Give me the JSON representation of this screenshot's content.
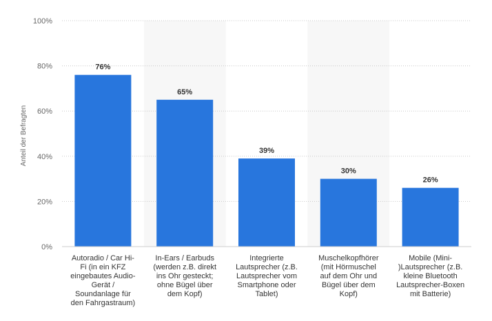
{
  "chart_data": {
    "type": "bar",
    "categories": [
      [
        "Autoradio / Car Hi-",
        "Fi (in ein KFZ",
        "eingebautes Audio-",
        "Gerät /",
        "Soundanlage für",
        "den Fahrgastraum)"
      ],
      [
        "In-Ears / Earbuds",
        "(werden z.B. direkt",
        "ins Ohr gesteckt;",
        "ohne Bügel über",
        "dem Kopf)"
      ],
      [
        "Integrierte",
        "Lautsprecher (z.B.",
        "Lautsprecher vom",
        "Smartphone oder",
        "Tablet)"
      ],
      [
        "Muschelkopfhörer",
        "(mit Hörmuschel",
        "auf dem Ohr und",
        "Bügel über dem",
        "Kopf)"
      ],
      [
        "Mobile (Mini-",
        ")Lautsprecher (z.B.",
        "kleine Bluetooth",
        "Lautsprecher-Boxen",
        "mit Batterie)"
      ]
    ],
    "values": [
      76,
      65,
      39,
      30,
      26
    ],
    "data_labels": [
      "76%",
      "65%",
      "39%",
      "30%",
      "26%"
    ],
    "ylabel": "Anteil der Befragten",
    "ylim": [
      0,
      100
    ],
    "yticks": [
      0,
      20,
      40,
      60,
      80,
      100
    ],
    "ytick_labels": [
      "0%",
      "20%",
      "40%",
      "60%",
      "80%",
      "100%"
    ],
    "grid": true,
    "bar_color": "#2876dd",
    "band_color": "#f7f7f7"
  }
}
